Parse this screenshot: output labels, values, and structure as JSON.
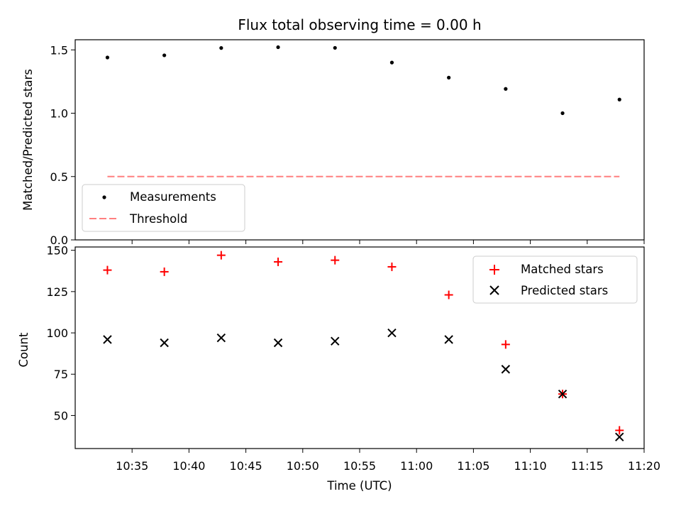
{
  "chart_data": [
    {
      "type": "scatter",
      "title": "Flux total observing time = 0.00 h",
      "xlabel": "",
      "ylabel": "Matched/Predicted stars",
      "ylim": [
        0,
        1.58
      ],
      "yticks": [
        "0.0",
        "0.5",
        "1.0",
        "1.5"
      ],
      "x": [
        "10:32:50",
        "10:37:50",
        "10:42:50",
        "10:47:50",
        "10:52:50",
        "10:57:50",
        "11:02:50",
        "11:07:50",
        "11:12:50",
        "11:17:50"
      ],
      "series": [
        {
          "name": "Measurements",
          "marker": "dot",
          "color": "#000000",
          "values": [
            1.44,
            1.457,
            1.515,
            1.521,
            1.516,
            1.4,
            1.281,
            1.192,
            1.0,
            1.108
          ]
        }
      ],
      "threshold": {
        "name": "Threshold",
        "value": 0.5,
        "color": "#ff7f7f",
        "style": "dashed"
      },
      "legend": "lower-left",
      "grid": false
    },
    {
      "type": "scatter",
      "title": "",
      "xlabel": "Time (UTC)",
      "ylabel": "Count",
      "ylim": [
        30,
        152
      ],
      "yticks": [
        "50",
        "75",
        "100",
        "125",
        "150"
      ],
      "xlim": [
        "10:30:00",
        "11:20:00"
      ],
      "xticks": [
        "10:35",
        "10:40",
        "10:45",
        "10:50",
        "10:55",
        "11:00",
        "11:05",
        "11:10",
        "11:15",
        "11:20"
      ],
      "x": [
        "10:32:50",
        "10:37:50",
        "10:42:50",
        "10:47:50",
        "10:52:50",
        "10:57:50",
        "11:02:50",
        "11:07:50",
        "11:12:50",
        "11:17:50"
      ],
      "series": [
        {
          "name": "Matched stars",
          "marker": "plus",
          "color": "#ff0000",
          "values": [
            138,
            137,
            147,
            143,
            144,
            140,
            123,
            93,
            63,
            41
          ]
        },
        {
          "name": "Predicted stars",
          "marker": "x",
          "color": "#000000",
          "values": [
            96,
            94,
            97,
            94,
            95,
            100,
            96,
            78,
            63,
            37
          ]
        }
      ],
      "legend": "upper-right",
      "grid": false
    }
  ]
}
